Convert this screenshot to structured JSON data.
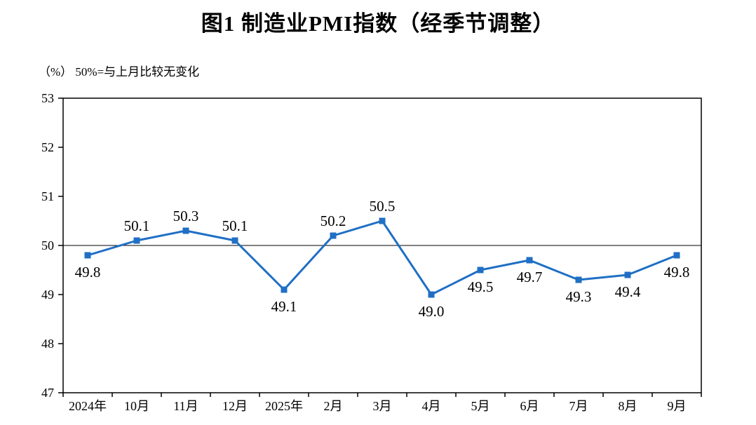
{
  "title": "图1  制造业PMI指数（经季节调整）",
  "subtitle": "（%）  50%=与上月比较无变化",
  "chart_data": {
    "type": "line",
    "title": "图1 制造业PMI指数（经季节调整）",
    "subtitle": "（%） 50%=与上月比较无变化",
    "categories": [
      "2024年",
      "10月",
      "11月",
      "12月",
      "2025年",
      "2月",
      "3月",
      "4月",
      "5月",
      "6月",
      "7月",
      "8月",
      "9月"
    ],
    "series": [
      {
        "name": "制造业PMI指数",
        "values": [
          49.8,
          50.1,
          50.3,
          50.1,
          49.1,
          50.2,
          50.5,
          49.0,
          49.5,
          49.7,
          49.3,
          49.4,
          49.8
        ]
      }
    ],
    "xlabel": "",
    "ylabel": "（%）",
    "ylim": [
      47,
      53
    ],
    "yticks": [
      47,
      48,
      49,
      50,
      51,
      52,
      53
    ],
    "reference_line": 50,
    "grid": false,
    "legend_position": "none",
    "line_color": "#1f6fc5",
    "marker": "square",
    "axis_color": "#000000",
    "value_label_decimals": 1
  }
}
